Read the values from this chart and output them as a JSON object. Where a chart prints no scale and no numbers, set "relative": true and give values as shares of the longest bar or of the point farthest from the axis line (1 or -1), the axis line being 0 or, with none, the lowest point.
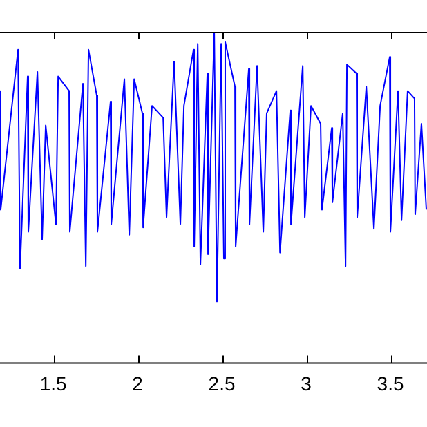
{
  "chart_data": {
    "type": "line",
    "relative": true,
    "color": "#0000ff",
    "x": [
      1.184,
      1.188,
      1.291,
      1.303,
      1.348,
      1.352,
      1.406,
      1.434,
      1.455,
      1.516,
      1.529,
      1.594,
      1.598,
      1.676,
      1.693,
      1.709,
      1.758,
      1.762,
      1.84,
      1.844,
      1.922,
      1.951,
      1.98,
      2.029,
      2.033,
      2.086,
      2.152,
      2.172,
      2.217,
      2.254,
      2.275,
      2.332,
      2.336,
      2.357,
      2.373,
      2.414,
      2.418,
      2.455,
      2.471,
      2.496,
      2.512,
      2.52,
      2.578,
      2.582,
      2.66,
      2.664,
      2.709,
      2.746,
      2.766,
      2.824,
      2.845,
      2.906,
      2.91,
      2.98,
      2.992,
      3.029,
      3.086,
      3.094,
      3.152,
      3.156,
      3.217,
      3.234,
      3.242,
      3.299,
      3.303,
      3.357,
      3.402,
      3.439,
      3.496,
      3.5,
      3.545,
      3.566,
      3.602,
      3.643,
      3.647,
      3.684,
      3.713
    ],
    "values": [
      0.821,
      0.462,
      0.946,
      0.283,
      0.865,
      0.395,
      0.879,
      0.372,
      0.717,
      0.417,
      0.865,
      0.821,
      0.395,
      0.843,
      0.291,
      0.946,
      0.807,
      0.395,
      0.789,
      0.417,
      0.857,
      0.386,
      0.857,
      0.753,
      0.408,
      0.776,
      0.74,
      0.439,
      0.91,
      0.417,
      0.776,
      0.946,
      0.35,
      0.964,
      0.296,
      0.874,
      0.327,
      1,
      0.184,
      0.964,
      0.314,
      0.969,
      0.834,
      0.35,
      0.888,
      0.417,
      0.897,
      0.395,
      0.753,
      0.821,
      0.332,
      0.762,
      0.417,
      0.897,
      0.439,
      0.776,
      0.722,
      0.462,
      0.709,
      0.484,
      0.753,
      0.291,
      0.901,
      0.874,
      0.439,
      0.834,
      0.404,
      0.776,
      0.924,
      0.395,
      0.821,
      0.43,
      0.821,
      0.798,
      0.448,
      0.722,
      0.462
    ],
    "xlim": [
      1.184,
      3.717
    ],
    "xticks": [
      1.5,
      2,
      2.5,
      3,
      3.5
    ],
    "grid": false,
    "legend": false,
    "marker": "none",
    "line_style": "solid"
  }
}
